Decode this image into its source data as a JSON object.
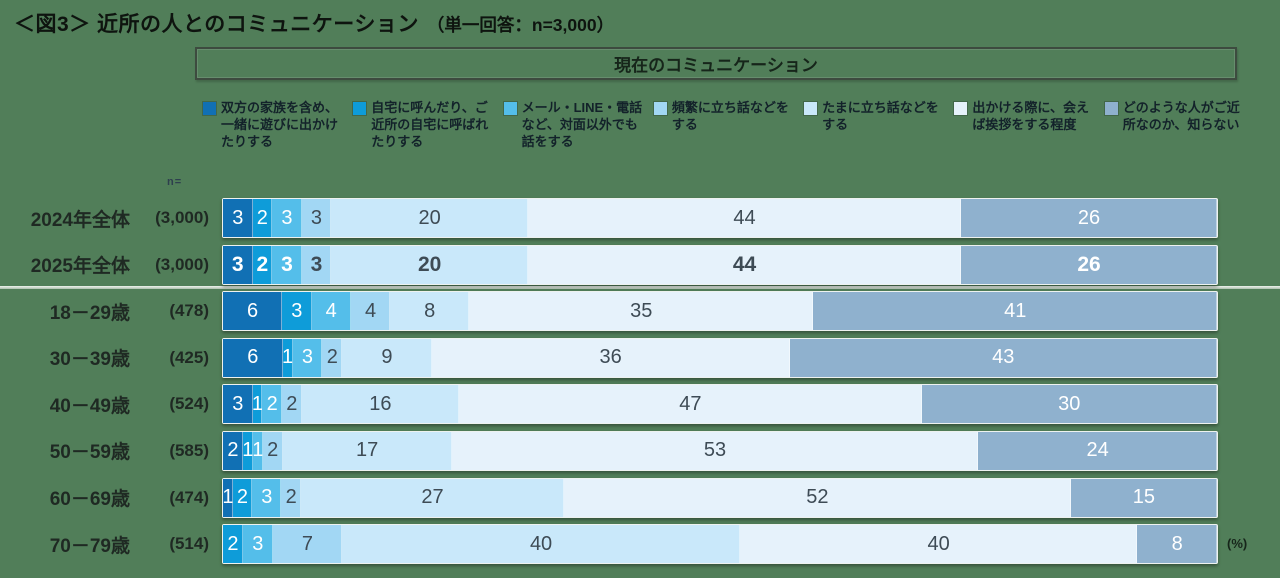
{
  "title": {
    "main": "＜図3＞ 近所の人とのコミュニケーション",
    "sub": "（単一回答：n=3,000）"
  },
  "panel": {
    "header": "現在のコミュニケーション",
    "n_label": "n=",
    "unit_label": "(%)"
  },
  "colors": {
    "background": "#517E59",
    "bar_colors": [
      "#1170B4",
      "#0E9CD9",
      "#54BEEA",
      "#A2D7F4",
      "#C9E8FA",
      "#E6F2FB",
      "#8FB1CE"
    ],
    "text_on_dark": "#FFFFFF",
    "text_on_light": "#3E4B55"
  },
  "chart_data": {
    "type": "bar",
    "stacked": true,
    "orientation": "horizontal",
    "unit": "%",
    "xlim": [
      0,
      100
    ],
    "legend_position": "top",
    "categories": [
      "2024年全体",
      "2025年全体",
      "18－29歳",
      "30－39歳",
      "40－49歳",
      "50－59歳",
      "60－69歳",
      "70－79歳"
    ],
    "category_ns": [
      "(3,000)",
      "(3,000)",
      "(478)",
      "(425)",
      "(524)",
      "(585)",
      "(474)",
      "(514)"
    ],
    "emphasized_row": 1,
    "series": [
      {
        "name": "双方の家族を含め、一緒に遊びに出かけたりする",
        "color": "#1170B4",
        "values": [
          3,
          3,
          6,
          6,
          3,
          2,
          1,
          0
        ]
      },
      {
        "name": "自宅に呼んだり、ご近所の自宅に呼ばれたりする",
        "color": "#0E9CD9",
        "values": [
          2,
          2,
          3,
          1,
          1,
          1,
          2,
          2
        ]
      },
      {
        "name": "メール・LINE・電話など、対面以外でも話をする",
        "color": "#54BEEA",
        "values": [
          3,
          3,
          4,
          3,
          2,
          1,
          3,
          3
        ]
      },
      {
        "name": "頻繁に立ち話などをする",
        "color": "#A2D7F4",
        "values": [
          3,
          3,
          4,
          2,
          2,
          2,
          2,
          7
        ]
      },
      {
        "name": "たまに立ち話などをする",
        "color": "#C9E8FA",
        "values": [
          20,
          20,
          8,
          9,
          16,
          17,
          27,
          40
        ]
      },
      {
        "name": "出かける際に、会えば挨拶をする程度",
        "color": "#E6F2FB",
        "values": [
          44,
          44,
          35,
          36,
          47,
          53,
          52,
          40
        ]
      },
      {
        "name": "どのような人がご近所なのか、知らない",
        "color": "#8FB1CE",
        "values": [
          26,
          26,
          41,
          43,
          30,
          24,
          15,
          8
        ]
      }
    ]
  }
}
